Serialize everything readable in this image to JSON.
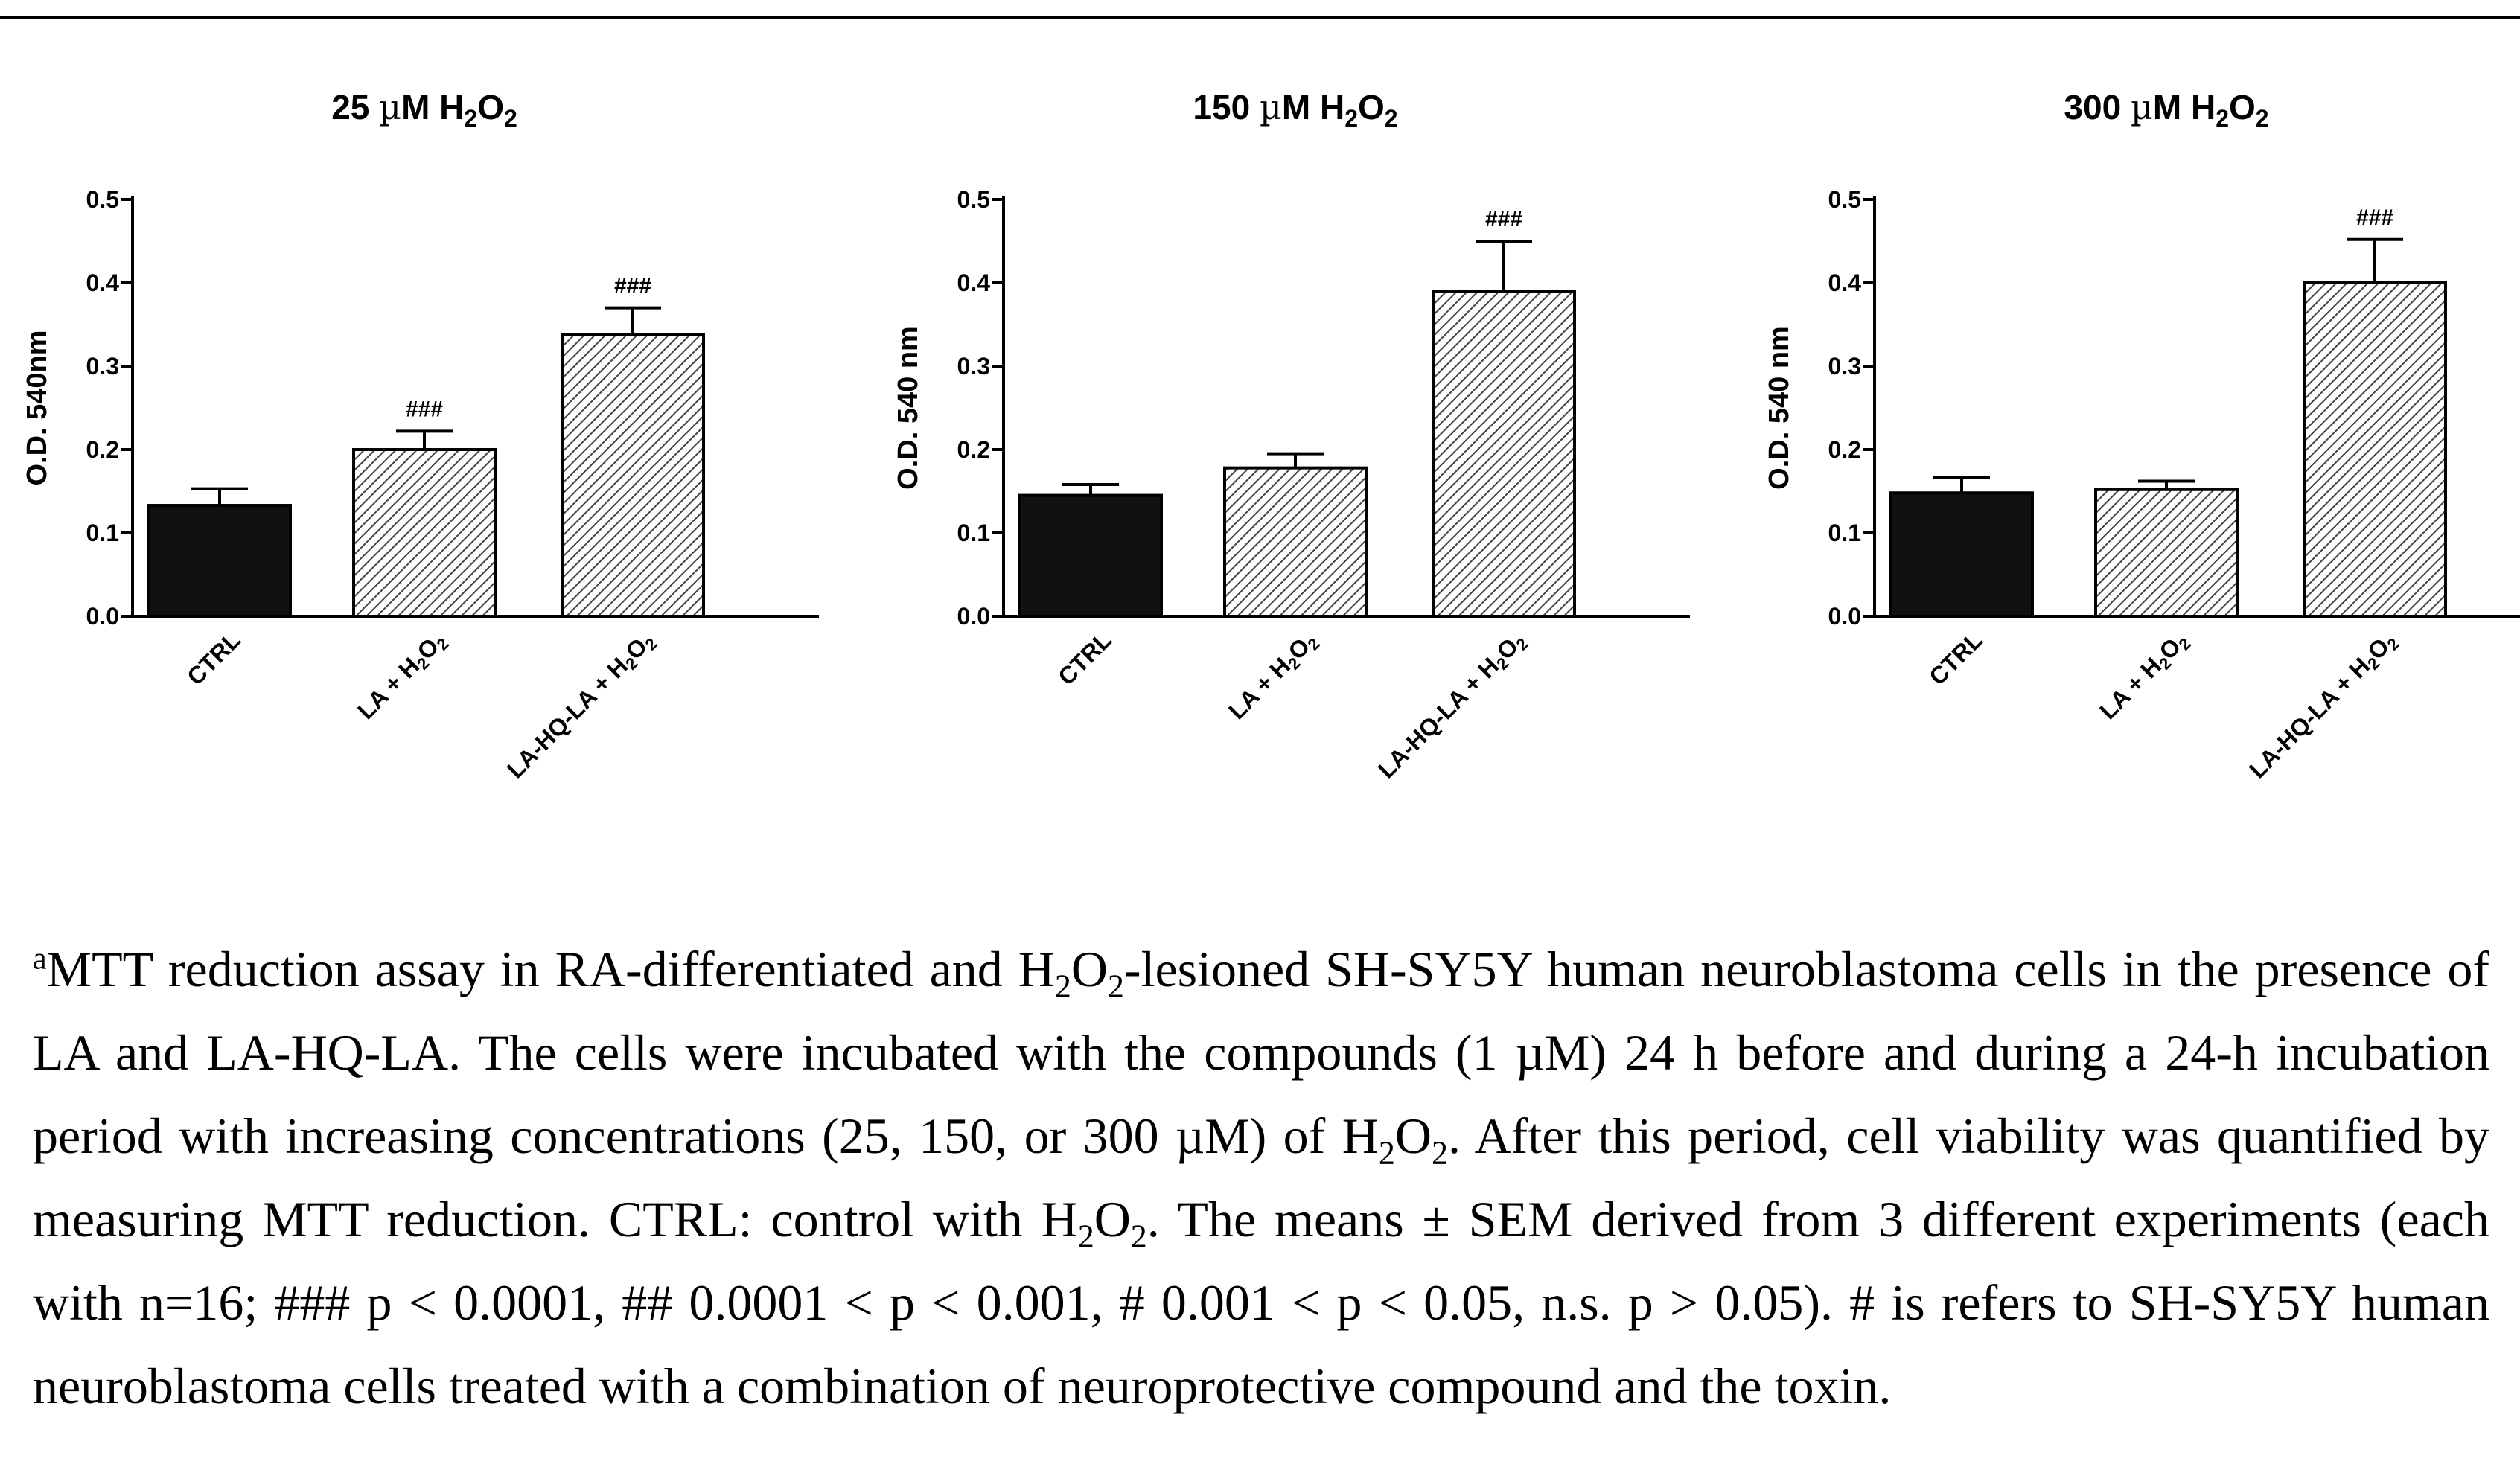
{
  "chart_data": [
    {
      "type": "bar",
      "title": "25 µM H2O2",
      "title_parts": {
        "a": "25 ",
        "mu": "µ",
        "b": "M H",
        "sub1": "2",
        "c": "O",
        "sub2": "2"
      },
      "ylabel": "O.D. 540nm",
      "ylim": [
        0,
        0.5
      ],
      "yticks": [
        0.0,
        0.1,
        0.2,
        0.3,
        0.4,
        0.5
      ],
      "ytick_labels": [
        "0.0",
        "0.1",
        "0.2",
        "0.3",
        "0.4",
        "0.5"
      ],
      "categories": [
        "CTRL",
        "LA + H2O2",
        "LA-HQ-LA + H2O2"
      ],
      "values": [
        0.133,
        0.2,
        0.338
      ],
      "errors": [
        0.02,
        0.022,
        0.032
      ],
      "significance": [
        "",
        "###",
        "###"
      ],
      "bar_fills": [
        "solid",
        "hatched",
        "hatched"
      ]
    },
    {
      "type": "bar",
      "title": "150 µM H2O2",
      "title_parts": {
        "a": "150 ",
        "mu": "µ",
        "b": "M H",
        "sub1": "2",
        "c": "O",
        "sub2": "2"
      },
      "ylabel": "O.D. 540 nm",
      "ylim": [
        0,
        0.5
      ],
      "yticks": [
        0.0,
        0.1,
        0.2,
        0.3,
        0.4,
        0.5
      ],
      "ytick_labels": [
        "0.0",
        "0.1",
        "0.2",
        "0.3",
        "0.4",
        "0.5"
      ],
      "categories": [
        "CTRL",
        "LA + H2O2",
        "LA-HQ-LA + H2O2"
      ],
      "values": [
        0.145,
        0.178,
        0.39
      ],
      "errors": [
        0.013,
        0.017,
        0.06
      ],
      "significance": [
        "",
        "",
        "###"
      ],
      "bar_fills": [
        "solid",
        "hatched",
        "hatched"
      ]
    },
    {
      "type": "bar",
      "title": "300 µM H2O2",
      "title_parts": {
        "a": "300 ",
        "mu": "µ",
        "b": "M H",
        "sub1": "2",
        "c": "O",
        "sub2": "2"
      },
      "ylabel": "O.D. 540 nm",
      "ylim": [
        0,
        0.5
      ],
      "yticks": [
        0.0,
        0.1,
        0.2,
        0.3,
        0.4,
        0.5
      ],
      "ytick_labels": [
        "0.0",
        "0.1",
        "0.2",
        "0.3",
        "0.4",
        "0.5"
      ],
      "categories": [
        "CTRL",
        "LA + H2O2",
        "LA-HQ-LA + H2O2"
      ],
      "values": [
        0.148,
        0.152,
        0.4
      ],
      "errors": [
        0.019,
        0.01,
        0.052
      ],
      "significance": [
        "",
        "",
        "###"
      ],
      "bar_fills": [
        "solid",
        "hatched",
        "hatched"
      ]
    }
  ],
  "caption": {
    "marker": "a",
    "s1": "MTT reduction assay in RA-differentiated and H",
    "sub1": "2",
    "s2": "O",
    "sub2": "2",
    "s3": "-lesioned SH-SY5Y human neuroblastoma cells in the presence of LA and LA-HQ-LA. The cells were incubated with the compounds (1 µM) 24 h before and during a 24-h incubation period with increasing concentrations (25, 150, or 300 µM) of H",
    "sub3": "2",
    "s4": "O",
    "sub4": "2",
    "s5": ". After this period, cell viability was quantified by measuring MTT reduction. CTRL: control with H",
    "sub5": "2",
    "s6": "O",
    "sub6": "2",
    "s7": ". The means ± SEM derived from 3 different experiments (each with n=16; ### p < 0.0001, ## 0.0001 < p < 0.001, # 0.001 < p < 0.05, n.s. p > 0.05). # is refers to SH-SY5Y human neuroblastoma cells treated with a combination of neuroprotective compound and the toxin."
  }
}
